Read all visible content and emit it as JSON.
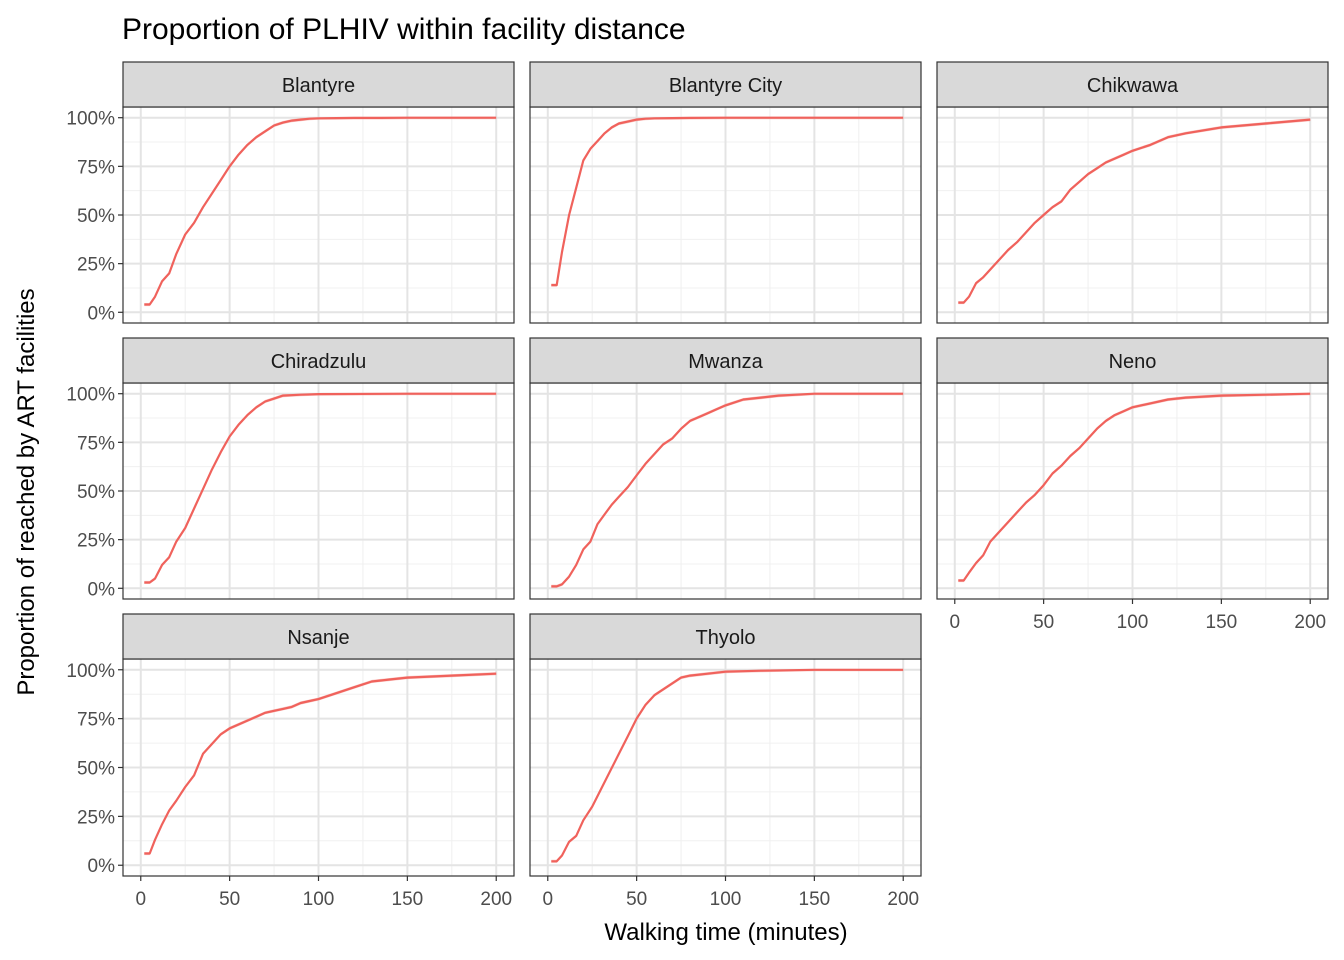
{
  "chart_data": {
    "type": "line",
    "title": "Proportion of PLHIV within facility distance",
    "xlabel": "Walking time (minutes)",
    "ylabel": "Proportion of reached by ART facilities",
    "xlim": [
      0,
      200
    ],
    "ylim": [
      0,
      1
    ],
    "x_ticks": [
      "0",
      "50",
      "100",
      "150",
      "200"
    ],
    "y_ticks": [
      "0%",
      "25%",
      "50%",
      "75%",
      "100%"
    ],
    "grid": true,
    "line_color": "#f0625c",
    "band_color": "#f4a6a2",
    "panels": [
      {
        "name": "Blantyre",
        "x": [
          2,
          5,
          8,
          12,
          16,
          20,
          25,
          30,
          35,
          40,
          45,
          50,
          55,
          60,
          65,
          70,
          75,
          80,
          85,
          90,
          95,
          100,
          110,
          120,
          130,
          150,
          170,
          200
        ],
        "values": [
          0.04,
          0.04,
          0.08,
          0.16,
          0.2,
          0.3,
          0.4,
          0.46,
          0.54,
          0.61,
          0.68,
          0.75,
          0.81,
          0.86,
          0.9,
          0.93,
          0.96,
          0.975,
          0.985,
          0.99,
          0.995,
          0.997,
          0.998,
          0.999,
          0.999,
          1,
          1,
          1
        ]
      },
      {
        "name": "Blantyre City",
        "x": [
          2,
          5,
          8,
          12,
          16,
          20,
          24,
          28,
          32,
          36,
          40,
          45,
          50,
          55,
          60,
          70,
          80,
          100,
          150,
          200
        ],
        "values": [
          0.14,
          0.14,
          0.31,
          0.5,
          0.64,
          0.78,
          0.84,
          0.88,
          0.92,
          0.95,
          0.97,
          0.98,
          0.99,
          0.995,
          0.997,
          0.998,
          0.999,
          1,
          1,
          1
        ]
      },
      {
        "name": "Chikwawa",
        "x": [
          2,
          5,
          8,
          12,
          16,
          20,
          25,
          30,
          35,
          40,
          45,
          50,
          55,
          60,
          65,
          70,
          75,
          80,
          85,
          90,
          95,
          100,
          110,
          120,
          130,
          150,
          175,
          200
        ],
        "values": [
          0.05,
          0.05,
          0.08,
          0.15,
          0.18,
          0.22,
          0.27,
          0.32,
          0.36,
          0.41,
          0.46,
          0.5,
          0.54,
          0.57,
          0.63,
          0.67,
          0.71,
          0.74,
          0.77,
          0.79,
          0.81,
          0.83,
          0.86,
          0.9,
          0.92,
          0.95,
          0.97,
          0.99
        ]
      },
      {
        "name": "Chiradzulu",
        "x": [
          2,
          5,
          8,
          12,
          16,
          20,
          25,
          30,
          35,
          40,
          45,
          50,
          55,
          60,
          65,
          70,
          75,
          80,
          90,
          100,
          150,
          200
        ],
        "values": [
          0.03,
          0.03,
          0.05,
          0.12,
          0.16,
          0.24,
          0.31,
          0.41,
          0.51,
          0.61,
          0.7,
          0.78,
          0.84,
          0.89,
          0.93,
          0.96,
          0.975,
          0.99,
          0.995,
          0.998,
          1,
          1
        ]
      },
      {
        "name": "Mwanza",
        "x": [
          2,
          5,
          8,
          12,
          16,
          20,
          24,
          28,
          32,
          36,
          40,
          45,
          50,
          55,
          60,
          65,
          70,
          75,
          80,
          85,
          90,
          95,
          100,
          110,
          120,
          130,
          150,
          200
        ],
        "values": [
          0.01,
          0.01,
          0.02,
          0.06,
          0.12,
          0.2,
          0.24,
          0.33,
          0.38,
          0.43,
          0.47,
          0.52,
          0.58,
          0.64,
          0.69,
          0.74,
          0.77,
          0.82,
          0.86,
          0.88,
          0.9,
          0.92,
          0.94,
          0.97,
          0.98,
          0.99,
          1,
          1
        ]
      },
      {
        "name": "Neno",
        "x": [
          2,
          5,
          8,
          12,
          16,
          20,
          25,
          30,
          35,
          40,
          45,
          50,
          55,
          60,
          65,
          70,
          75,
          80,
          85,
          90,
          95,
          100,
          110,
          120,
          130,
          140,
          150,
          175,
          200
        ],
        "values": [
          0.04,
          0.04,
          0.08,
          0.13,
          0.17,
          0.24,
          0.29,
          0.34,
          0.39,
          0.44,
          0.48,
          0.53,
          0.59,
          0.63,
          0.68,
          0.72,
          0.77,
          0.82,
          0.86,
          0.89,
          0.91,
          0.93,
          0.95,
          0.97,
          0.98,
          0.985,
          0.99,
          0.995,
          1
        ]
      },
      {
        "name": "Nsanje",
        "x": [
          2,
          5,
          8,
          12,
          16,
          20,
          25,
          30,
          35,
          40,
          45,
          50,
          55,
          60,
          65,
          70,
          75,
          80,
          85,
          90,
          95,
          100,
          110,
          120,
          130,
          140,
          150,
          175,
          200
        ],
        "values": [
          0.06,
          0.06,
          0.13,
          0.21,
          0.28,
          0.33,
          0.4,
          0.46,
          0.57,
          0.62,
          0.67,
          0.7,
          0.72,
          0.74,
          0.76,
          0.78,
          0.79,
          0.8,
          0.81,
          0.83,
          0.84,
          0.85,
          0.88,
          0.91,
          0.94,
          0.95,
          0.96,
          0.97,
          0.98
        ]
      },
      {
        "name": "Thyolo",
        "x": [
          2,
          5,
          8,
          12,
          16,
          20,
          25,
          30,
          35,
          40,
          45,
          50,
          55,
          60,
          65,
          70,
          75,
          80,
          90,
          100,
          120,
          150,
          200
        ],
        "values": [
          0.02,
          0.02,
          0.05,
          0.12,
          0.15,
          0.23,
          0.3,
          0.39,
          0.48,
          0.57,
          0.66,
          0.75,
          0.82,
          0.87,
          0.9,
          0.93,
          0.96,
          0.97,
          0.98,
          0.99,
          0.995,
          1,
          1
        ]
      }
    ]
  }
}
